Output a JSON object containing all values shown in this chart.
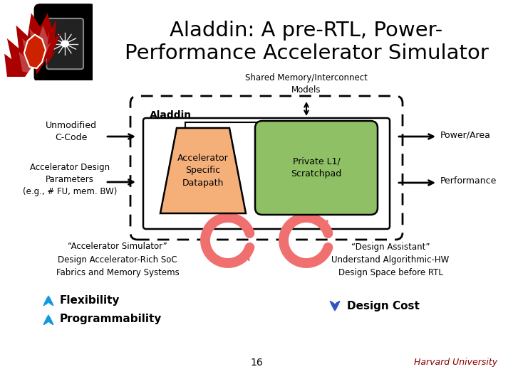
{
  "title_line1": "Aladdin: A pre-RTL, Power-",
  "title_line2": "Performance Accelerator Simulator",
  "title_fontsize": 21,
  "bg_color": "#ffffff",
  "shared_mem_label": "Shared Memory/Interconnect\nModels",
  "unmodified_label": "Unmodified\nC-Code",
  "accel_design_label": "Accelerator Design\nParameters\n(e.g., # FU, mem. BW)",
  "aladdin_label": "Aladdin",
  "accel_specific_label": "Accelerator\nSpecific\nDatapath",
  "private_l1_label": "Private L1/\nScratchpad",
  "power_area_label": "Power/Area",
  "performance_label": "Performance",
  "accel_sim_label": "“Accelerator Simulator”\nDesign Accelerator-Rich SoC\nFabrics and Memory Systems",
  "design_assistant_label": "“Design Assistant”\nUnderstand Algorithmic-HW\nDesign Space before RTL",
  "flexibility_label": "Flexibility",
  "programmability_label": "Programmability",
  "design_cost_label": "Design Cost",
  "page_number": "16",
  "harvard_label": "Harvard University",
  "harvard_color": "#8B0000",
  "pink_arrow_color": "#F07070",
  "orange_box_color": "#F5B07A",
  "green_box_color": "#90C065",
  "cyan_arrow_color": "#1199DD",
  "blue_arrow_color": "#3355BB"
}
